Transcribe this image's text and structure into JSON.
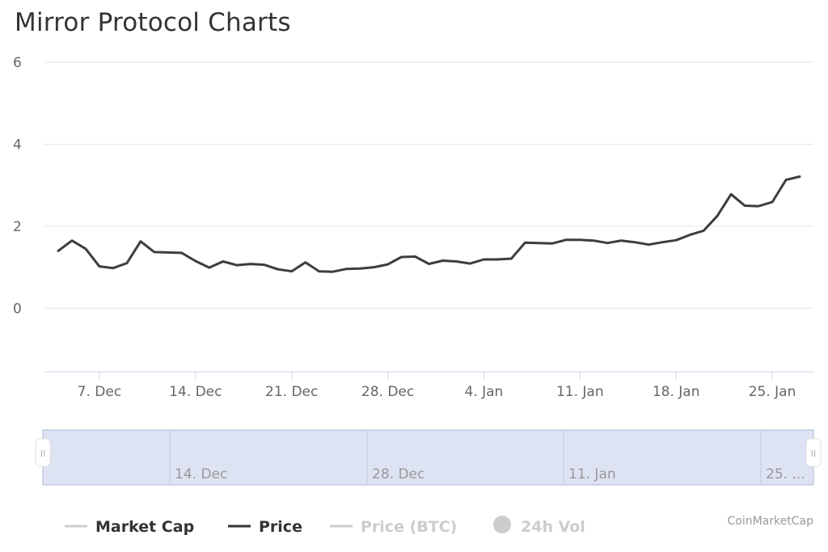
{
  "title": "Mirror Protocol Charts",
  "credits": "CoinMarketCap",
  "colors": {
    "price_line": "#3d3d3d",
    "grid": "#e6e6e6",
    "axis": "#ccd6eb",
    "navigator_fill": "#dde3f2",
    "navigator_border": "#aeb8d6",
    "legend_hidden": "#cccccc"
  },
  "legend": [
    {
      "label": "Market Cap",
      "visible": true,
      "symbol": "line",
      "color": "#cccccc"
    },
    {
      "label": "Price",
      "visible": true,
      "symbol": "line",
      "color": "#333333"
    },
    {
      "label": "Price (BTC)",
      "visible": false,
      "symbol": "line",
      "color": "#cccccc"
    },
    {
      "label": "24h Vol",
      "visible": false,
      "symbol": "circle",
      "color": "#cccccc"
    }
  ],
  "navigator": {
    "tick_labels": [
      "14. Dec",
      "28. Dec",
      "11. Jan",
      "25. ..."
    ],
    "handle_glyph": "II"
  },
  "chart_data": {
    "type": "line",
    "title": "Mirror Protocol Charts",
    "xlabel": "",
    "ylabel": "",
    "ylim": [
      -1.55,
      6
    ],
    "yticks": [
      0,
      2,
      4,
      6
    ],
    "xlim": [
      "2020-12-03",
      "2021-01-28"
    ],
    "xticks": [
      {
        "date": "2020-12-07",
        "label": "7. Dec"
      },
      {
        "date": "2020-12-14",
        "label": "14. Dec"
      },
      {
        "date": "2020-12-21",
        "label": "21. Dec"
      },
      {
        "date": "2020-12-28",
        "label": "28. Dec"
      },
      {
        "date": "2021-01-04",
        "label": "4. Jan"
      },
      {
        "date": "2021-01-11",
        "label": "11. Jan"
      },
      {
        "date": "2021-01-18",
        "label": "18. Jan"
      },
      {
        "date": "2021-01-25",
        "label": "25. Jan"
      }
    ],
    "grid": true,
    "series": [
      {
        "name": "Price",
        "x": [
          "2020-12-04",
          "2020-12-05",
          "2020-12-06",
          "2020-12-07",
          "2020-12-08",
          "2020-12-09",
          "2020-12-10",
          "2020-12-11",
          "2020-12-12",
          "2020-12-13",
          "2020-12-14",
          "2020-12-15",
          "2020-12-16",
          "2020-12-17",
          "2020-12-18",
          "2020-12-19",
          "2020-12-20",
          "2020-12-21",
          "2020-12-22",
          "2020-12-23",
          "2020-12-24",
          "2020-12-25",
          "2020-12-26",
          "2020-12-27",
          "2020-12-28",
          "2020-12-29",
          "2020-12-30",
          "2020-12-31",
          "2021-01-01",
          "2021-01-02",
          "2021-01-03",
          "2021-01-04",
          "2021-01-05",
          "2021-01-06",
          "2021-01-07",
          "2021-01-08",
          "2021-01-09",
          "2021-01-10",
          "2021-01-11",
          "2021-01-12",
          "2021-01-13",
          "2021-01-14",
          "2021-01-15",
          "2021-01-16",
          "2021-01-17",
          "2021-01-18",
          "2021-01-19",
          "2021-01-20",
          "2021-01-21",
          "2021-01-22",
          "2021-01-23",
          "2021-01-24",
          "2021-01-25",
          "2021-01-26",
          "2021-01-27"
        ],
        "y": [
          1.4,
          1.65,
          1.45,
          1.02,
          0.98,
          1.1,
          1.63,
          1.37,
          1.36,
          1.35,
          1.15,
          0.99,
          1.14,
          1.05,
          1.08,
          1.06,
          0.95,
          0.9,
          1.12,
          0.9,
          0.89,
          0.96,
          0.97,
          1.0,
          1.07,
          1.25,
          1.26,
          1.08,
          1.16,
          1.14,
          1.09,
          1.19,
          1.19,
          1.21,
          1.6,
          1.59,
          1.58,
          1.67,
          1.67,
          1.65,
          1.59,
          1.65,
          1.61,
          1.55,
          1.61,
          1.66,
          1.79,
          1.89,
          2.25,
          2.78,
          2.5,
          2.49,
          2.59,
          3.13,
          3.21
        ]
      }
    ]
  }
}
